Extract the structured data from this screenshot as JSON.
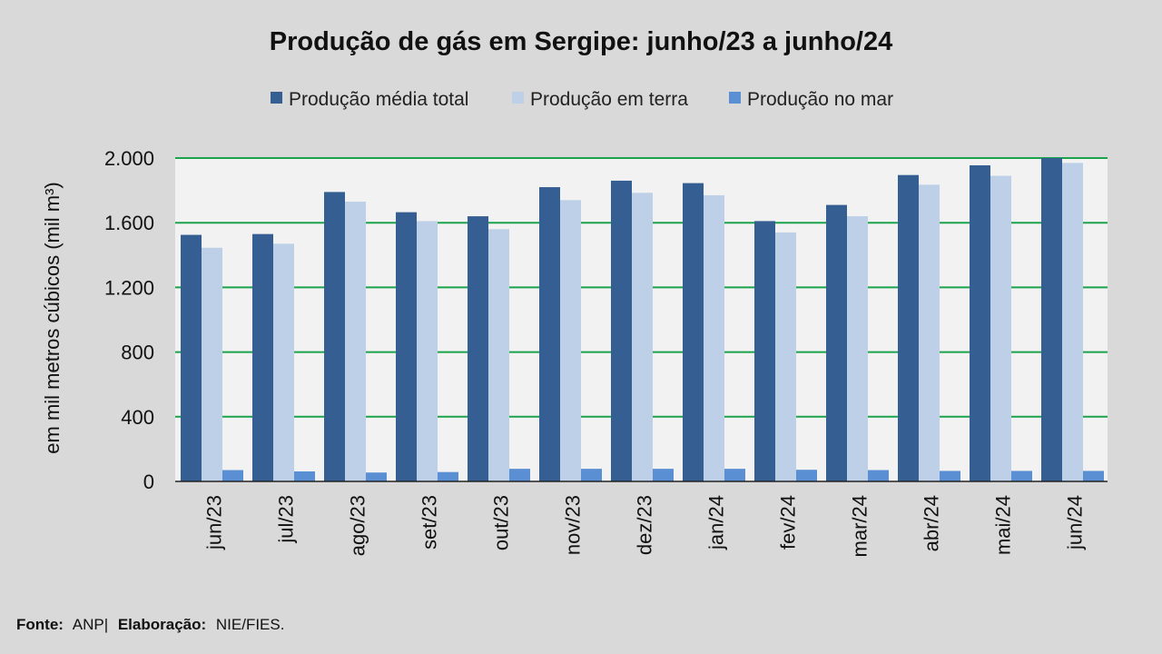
{
  "chart_data": {
    "type": "bar",
    "title": "Produção de gás em Sergipe: junho/23 a junho/24",
    "ylabel": "em mil metros cúbicos (mil m³)",
    "xlabel": "",
    "categories": [
      "jun/23",
      "jul/23",
      "ago/23",
      "set/23",
      "out/23",
      "nov/23",
      "dez/23",
      "jan/24",
      "fev/24",
      "mar/24",
      "abr/24",
      "mai/24",
      "jun/24"
    ],
    "series": [
      {
        "name": "Produção média total",
        "color": "#355f92",
        "values": [
          1525,
          1530,
          1790,
          1665,
          1640,
          1820,
          1860,
          1845,
          1610,
          1710,
          1895,
          1955,
          2000
        ]
      },
      {
        "name": "Produção em terra",
        "color": "#bdd0e8",
        "values": [
          1445,
          1470,
          1730,
          1610,
          1560,
          1740,
          1785,
          1770,
          1540,
          1640,
          1835,
          1890,
          1970
        ]
      },
      {
        "name": "Produção no mar",
        "color": "#5b8fd4",
        "values": [
          70,
          62,
          55,
          58,
          78,
          78,
          78,
          78,
          72,
          70,
          65,
          65,
          65
        ]
      }
    ],
    "ylim": [
      0,
      2000
    ],
    "yticks": [
      0,
      400,
      800,
      1200,
      1600,
      2000
    ],
    "ytick_labels": [
      "0",
      "400",
      "800",
      "1.200",
      "1.600",
      "2.000"
    ],
    "grid": true,
    "grid_color": "#1aa34a",
    "legend_position": "top"
  },
  "source": {
    "fonte_label": "Fonte:",
    "fonte_value": "ANP|",
    "elab_label": "Elaboração:",
    "elab_value": "NIE/FIES."
  }
}
